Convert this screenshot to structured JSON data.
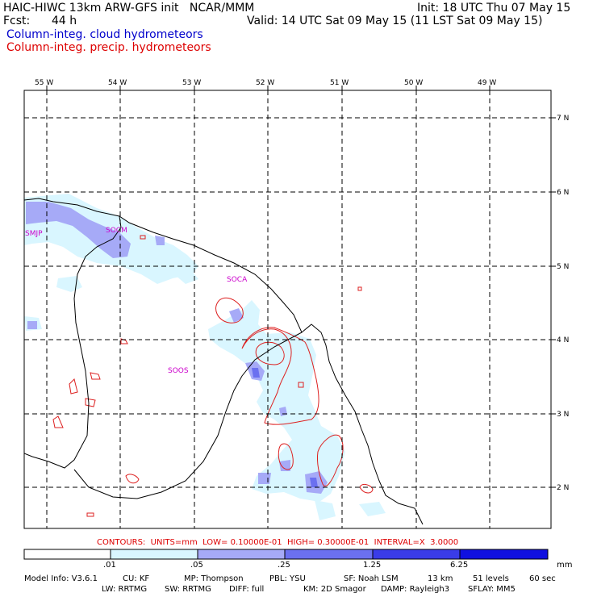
{
  "header": {
    "title_left": "HAIC-HIWC 13km ARW-GFS init   NCAR/MMM",
    "init": "Init: 18 UTC Thu 07 May 15",
    "fcst_label": "Fcst:",
    "fcst_value": "44 h",
    "valid": "Valid: 14 UTC Sat 09 May 15 (11 LST Sat 09 May 15)",
    "field_cloud": "Column-integ. cloud hydrometeors",
    "field_precip": "Column-integ. precip. hydrometeors"
  },
  "colors": {
    "cloud_text": "#0000cc",
    "precip_text": "#dd0000",
    "station_text": "#cc00cc",
    "shade_1": "#d9f6ff",
    "shade_2": "#a6aaf7",
    "shade_3": "#6b70f0",
    "shade_4": "#3a3ce8",
    "shade_5": "#1010e0",
    "contour": "#dd2020"
  },
  "map": {
    "lon_labels": [
      "55 W",
      "54 W",
      "53 W",
      "52 W",
      "51 W",
      "50 W",
      "49 W"
    ],
    "lat_labels": [
      "7 N",
      "6 N",
      "5 N",
      "4 N",
      "3 N",
      "2 N"
    ],
    "stations": [
      {
        "id": "SMJP"
      },
      {
        "id": "SOCM"
      },
      {
        "id": "SOCA"
      },
      {
        "id": "SOOS"
      }
    ]
  },
  "contours_text": "CONTOURS:  UNITS=mm  LOW= 0.10000E-01  HIGH= 0.30000E-01  INTERVAL=X  3.0000",
  "colorbar": {
    "ticks": [
      ".01",
      ".05",
      ".25",
      "1.25",
      "6.25"
    ],
    "units": "mm"
  },
  "footer": {
    "line1": [
      "Model Info: V3.6.1",
      "CU: KF",
      "MP: Thompson",
      "PBL: YSU",
      "SF: Noah LSM",
      "13 km",
      "51 levels",
      "60 sec"
    ],
    "line2": [
      "LW: RRTMG",
      "SW: RRTMG",
      "DIFF: full",
      "KM: 2D Smagor",
      "DAMP: Rayleigh3",
      "SFLAY: MM5"
    ]
  }
}
